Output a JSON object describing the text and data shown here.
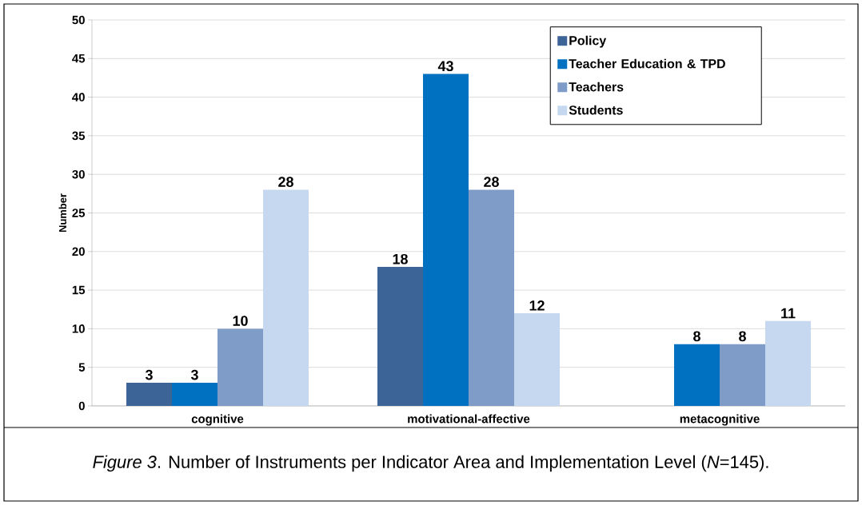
{
  "chart_data": {
    "type": "bar",
    "ylabel": "Number",
    "categories": [
      "cognitive",
      "motivational-affective",
      "metacognitive"
    ],
    "series": [
      {
        "name": "Policy",
        "color": "#3c6496",
        "values": [
          3,
          18,
          null
        ]
      },
      {
        "name": "Teacher Education & TPD",
        "color": "#0070c0",
        "values": [
          3,
          43,
          8
        ]
      },
      {
        "name": "Teachers",
        "color": "#7f9cc8",
        "values": [
          10,
          28,
          8
        ]
      },
      {
        "name": "Students",
        "color": "#c5d8ef",
        "values": [
          28,
          12,
          11
        ]
      }
    ],
    "ylim": [
      0,
      50
    ],
    "yticks": [
      0,
      5,
      10,
      15,
      20,
      25,
      30,
      35,
      40,
      45,
      50
    ],
    "grid": "y",
    "legend": "top right",
    "data_labels": true,
    "annotations": [
      "*Figure 3*. Number of Instruments per Indicator Area and Implementation Level (*N*=145)."
    ]
  }
}
